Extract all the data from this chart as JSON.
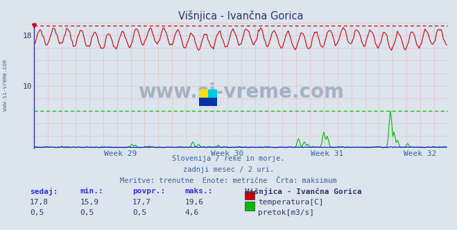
{
  "title": "Višnjica - Ivančna Gorica",
  "bg_color": "#dce4ed",
  "plot_bg_color": "#dce4ed",
  "spine_color": "#3333aa",
  "x_ticks_labels": [
    "Week 29",
    "Week 30",
    "Week 31",
    "Week 32"
  ],
  "xlim": [
    0,
    360
  ],
  "ylim": [
    0,
    20
  ],
  "y_tick_vals": [
    10,
    18
  ],
  "temp_color": "#cc0000",
  "flow_color": "#00bb00",
  "height_color": "#0000cc",
  "grid_color": "#ee9999",
  "dashed_temp_max_y": 19.6,
  "dashed_flow_max_y": 6.0,
  "footer_line1": "Slovenija / reke in morje.",
  "footer_line2": "zadnji mesec / 2 uri.",
  "footer_line3": "Meritve: trenutne  Enote: metrične  Črta: maksimum",
  "watermark": "www.si-vreme.com",
  "left_label": "www.si-vreme.com",
  "legend_title": "Višnjica - Ivančna Gorica",
  "legend_items": [
    {
      "label": "temperatura[C]",
      "color": "#cc0000"
    },
    {
      "label": "pretok[m3/s]",
      "color": "#00bb00"
    }
  ],
  "table_headers": [
    "sedaj:",
    "min.:",
    "povpr.:",
    "maks.:"
  ],
  "table_row1": [
    "17,8",
    "15,9",
    "17,7",
    "19,6"
  ],
  "table_row2": [
    "0,5",
    "0,5",
    "0,5",
    "4,6"
  ],
  "week29_x": 75,
  "week30_x": 168,
  "week31_x": 255,
  "week32_x": 336,
  "n_points": 360
}
